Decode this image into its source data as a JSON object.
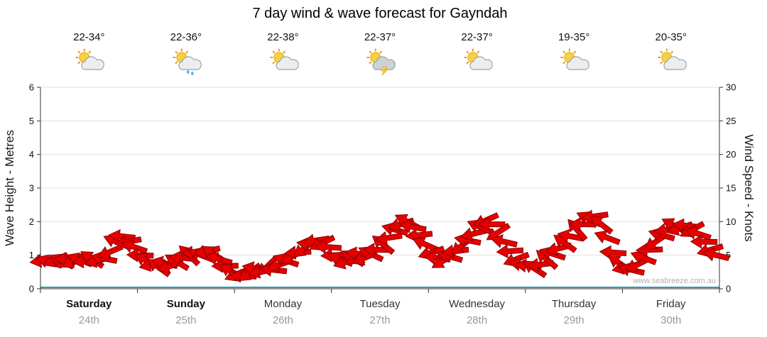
{
  "title": "7 day wind & wave forecast for Gayndah",
  "watermark": "www.seabreeze.com.au",
  "days": [
    {
      "name": "Saturday",
      "date": "24th",
      "temp": "22-34°",
      "icon": "sun-cloud-icon",
      "bold": true
    },
    {
      "name": "Sunday",
      "date": "25th",
      "temp": "22-36°",
      "icon": "sun-cloud-rain-icon",
      "bold": true
    },
    {
      "name": "Monday",
      "date": "26th",
      "temp": "22-38°",
      "icon": "sun-cloud-icon",
      "bold": false
    },
    {
      "name": "Tuesday",
      "date": "27th",
      "temp": "22-37°",
      "icon": "sun-cloud-storm-icon",
      "bold": false
    },
    {
      "name": "Wednesday",
      "date": "28th",
      "temp": "22-37°",
      "icon": "sun-cloud-icon",
      "bold": false
    },
    {
      "name": "Thursday",
      "date": "29th",
      "temp": "19-35°",
      "icon": "sun-cloud-icon",
      "bold": false
    },
    {
      "name": "Friday",
      "date": "30th",
      "temp": "20-35°",
      "icon": "sun-cloud-icon",
      "bold": false
    }
  ],
  "chart_data": {
    "type": "wind-direction-arrows",
    "title": "7 day wind & wave forecast for Gayndah",
    "left_axis": {
      "label": "Wave Height - Metres",
      "range": [
        0,
        6
      ],
      "ticks": [
        0,
        1,
        2,
        3,
        4,
        5,
        6
      ]
    },
    "right_axis": {
      "label": "Wind Speed - Knots",
      "range": [
        0,
        30
      ],
      "ticks": [
        0,
        5,
        10,
        15,
        20,
        25,
        30
      ]
    },
    "samples_per_day": 16,
    "grid": true,
    "wave_height_metres_flat": 0,
    "wind_knots": [
      4.2,
      4.0,
      4.3,
      4.1,
      4.4,
      4.2,
      4.3,
      4.1,
      4.4,
      4.2,
      4.5,
      5.5,
      7.0,
      7.8,
      7.0,
      6.2,
      5.0,
      4.2,
      3.6,
      3.2,
      3.8,
      3.4,
      4.0,
      4.6,
      5.0,
      5.4,
      5.0,
      5.6,
      5.2,
      4.4,
      3.4,
      2.6,
      2.2,
      1.9,
      2.4,
      3.0,
      2.6,
      3.4,
      2.8,
      3.6,
      4.2,
      4.8,
      5.4,
      6.0,
      6.6,
      7.2,
      6.8,
      6.2,
      5.0,
      4.4,
      4.0,
      4.6,
      5.2,
      4.6,
      5.2,
      5.8,
      6.6,
      7.6,
      8.8,
      9.6,
      10.0,
      9.2,
      8.0,
      6.6,
      5.4,
      4.6,
      4.2,
      4.8,
      5.6,
      6.4,
      7.2,
      8.2,
      9.2,
      10.2,
      9.6,
      8.4,
      7.0,
      5.6,
      4.4,
      3.6,
      3.4,
      3.0,
      3.6,
      4.4,
      5.2,
      6.0,
      6.8,
      7.8,
      8.8,
      9.6,
      10.4,
      10.8,
      9.6,
      7.6,
      5.4,
      3.8,
      3.2,
      2.8,
      3.6,
      4.6,
      5.8,
      7.0,
      8.0,
      8.8,
      9.4,
      9.0,
      9.4,
      8.8,
      8.2,
      7.0,
      5.8,
      5.0
    ],
    "wind_dir_deg": [
      172,
      198,
      158,
      206,
      183,
      151,
      201,
      176,
      214,
      166,
      191,
      157,
      203,
      186,
      169,
      199,
      182,
      208,
      168,
      216,
      193,
      161,
      211,
      186,
      224,
      176,
      201,
      167,
      213,
      196,
      179,
      209,
      157,
      183,
      143,
      191,
      168,
      136,
      186,
      161,
      199,
      151,
      176,
      142,
      188,
      171,
      154,
      184,
      177,
      203,
      163,
      211,
      188,
      156,
      206,
      181,
      219,
      171,
      196,
      162,
      208,
      191,
      174,
      204,
      162,
      188,
      148,
      196,
      173,
      141,
      191,
      166,
      204,
      156,
      181,
      147,
      193,
      176,
      159,
      189,
      187,
      213,
      173,
      221,
      198,
      166,
      216,
      191,
      229,
      181,
      206,
      172,
      218,
      201,
      184,
      214,
      167,
      193,
      153,
      201,
      178,
      146,
      196,
      171,
      209,
      161,
      186,
      152,
      198,
      181,
      164,
      194
    ]
  },
  "colors": {
    "arrow_fill": "#e60000",
    "arrow_outline": "#8b0000",
    "wave_line": "#2e9bb5",
    "grid_line": "#eedcdc",
    "axis_line": "#333333",
    "tick_text": "#111111",
    "day_text": "#333333",
    "day_text_bold": "#111111",
    "date_text": "#999999",
    "watermark_text": "#b0b0b0"
  }
}
